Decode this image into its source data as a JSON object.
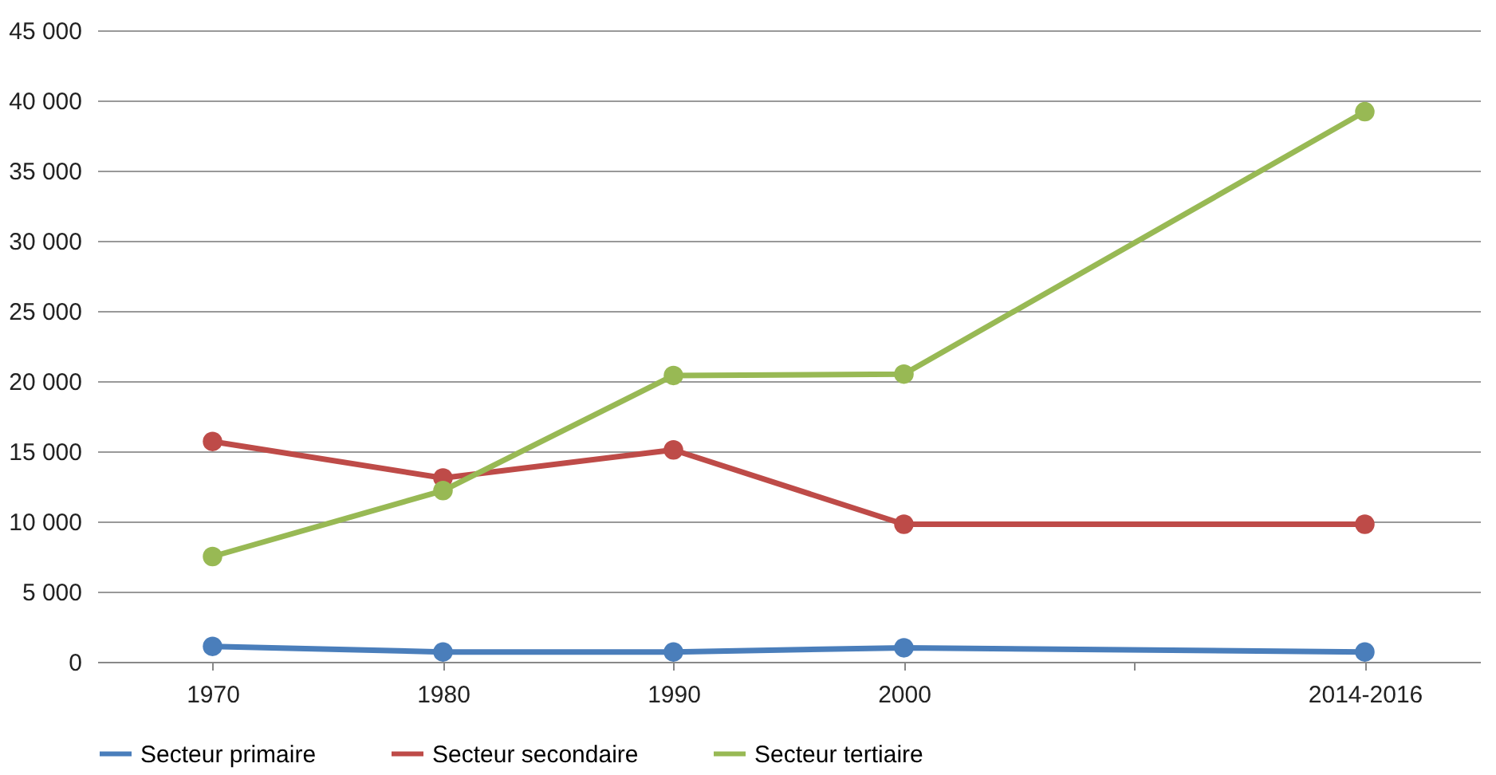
{
  "chart_data": {
    "type": "line",
    "categories": [
      "1970",
      "1980",
      "1990",
      "2000",
      null,
      "2014-2016"
    ],
    "series": [
      {
        "name": "Secteur primaire",
        "color": "#4a7ebb",
        "values": [
          1100,
          700,
          700,
          1000,
          null,
          700
        ]
      },
      {
        "name": "Secteur secondaire",
        "color": "#be4b48",
        "values": [
          15700,
          13100,
          15100,
          9800,
          null,
          9800
        ]
      },
      {
        "name": "Secteur tertiaire",
        "color": "#98b954",
        "values": [
          7500,
          12200,
          20400,
          20500,
          null,
          39200
        ]
      }
    ],
    "ylim": [
      0,
      45000
    ],
    "yticks": [
      {
        "value": 0,
        "label": "0"
      },
      {
        "value": 5000,
        "label": "5 000"
      },
      {
        "value": 10000,
        "label": "10 000"
      },
      {
        "value": 15000,
        "label": "15 000"
      },
      {
        "value": 20000,
        "label": "20 000"
      },
      {
        "value": 25000,
        "label": "25 000"
      },
      {
        "value": 30000,
        "label": "30 000"
      },
      {
        "value": 35000,
        "label": "35 000"
      },
      {
        "value": 40000,
        "label": "40 000"
      },
      {
        "value": 45000,
        "label": "45 000"
      }
    ],
    "grid": "y",
    "legend": "bottom",
    "marker": "circle",
    "line_style": "solid"
  }
}
